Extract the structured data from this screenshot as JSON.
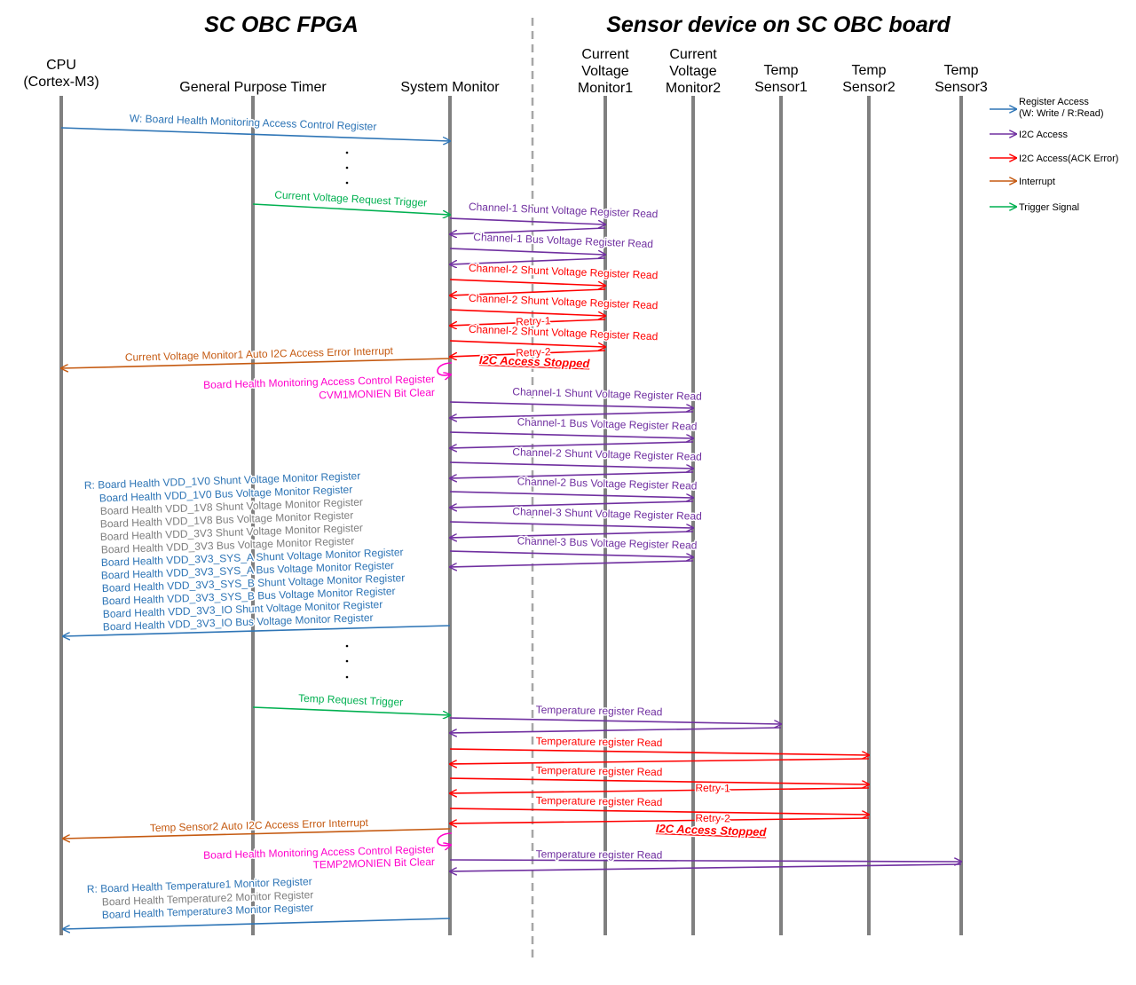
{
  "titles": {
    "left": "SC OBC FPGA",
    "right": "Sensor device on SC OBC board"
  },
  "colors": {
    "register": "#2e75b6",
    "i2c": "#7030a0",
    "error": "#ff0000",
    "interrupt": "#c55a11",
    "trigger": "#00b050",
    "clear": "#ff00cc",
    "gray_text": "#7f7f7f",
    "lifeline": "#808080"
  },
  "participants": [
    {
      "id": "cpu",
      "lines": [
        "CPU",
        "(Cortex-M3)"
      ]
    },
    {
      "id": "gpt",
      "lines": [
        "General Purpose Timer"
      ]
    },
    {
      "id": "sysmon",
      "lines": [
        "System Monitor"
      ]
    },
    {
      "id": "cvm1",
      "lines": [
        "Current",
        "Voltage",
        "Monitor1"
      ]
    },
    {
      "id": "cvm2",
      "lines": [
        "Current",
        "Voltage",
        "Monitor2"
      ]
    },
    {
      "id": "ts1",
      "lines": [
        "Temp",
        "Sensor1"
      ]
    },
    {
      "id": "ts2",
      "lines": [
        "Temp",
        "Sensor2"
      ]
    },
    {
      "id": "ts3",
      "lines": [
        "Temp",
        "Sensor3"
      ]
    }
  ],
  "legend": [
    {
      "type": "register",
      "lines": [
        "Register Access",
        "(W: Write / R:Read)"
      ]
    },
    {
      "type": "i2c",
      "lines": [
        "I2C Access"
      ]
    },
    {
      "type": "error",
      "lines": [
        "I2C Access(ACK Error)"
      ]
    },
    {
      "type": "interrupt",
      "lines": [
        "Interrupt"
      ]
    },
    {
      "type": "trigger",
      "lines": [
        "Trigger Signal"
      ]
    }
  ],
  "messages": {
    "m1": "W: Board Health Monitoring Access Control Register",
    "m2": "Current Voltage Request Trigger",
    "cvm1_read": [
      "Channel-1  Shunt  Voltage Register Read",
      "Channel-1  Bus  Voltage Register Read",
      "Channel-2  Shunt  Voltage Register Read",
      "Channel-2  Shunt  Voltage Register Read",
      "Channel-2  Shunt  Voltage Register Read"
    ],
    "retry1": "Retry-1",
    "retry2": "Retry-2",
    "interrupt1": "Current  Voltage  Monitor1  Auto  I2C  Access  Error  Interrupt",
    "stopped": "I2C Access Stopped",
    "clear1": [
      "Board Health Monitoring  Access Control Register",
      "CVM1MONIEN  Bit Clear"
    ],
    "cvm2_read": [
      "Channel-1  Shunt  Voltage Register Read",
      "Channel-1  Bus  Voltage Register Read",
      "Channel-2  Shunt  Voltage Register Read",
      "Channel-2  Bus  Voltage Register Read",
      "Channel-3  Shunt  Voltage Register Read",
      "Channel-3  Bus  Voltage Register Read"
    ],
    "read_regs": [
      {
        "text": "R:  Board Health VDD_1V0  Shunt  Voltage  Monitor  Register",
        "style": "register"
      },
      {
        "text": "Board Health VDD_1V0  Bus  Voltage  Monitor  Register",
        "style": "register"
      },
      {
        "text": "Board Health VDD_1V8  Shunt  Voltage  Monitor  Register",
        "style": "gray"
      },
      {
        "text": "Board Health VDD_1V8  Bus  Voltage  Monitor  Register",
        "style": "gray"
      },
      {
        "text": "Board Health VDD_3V3  Shunt  Voltage  Monitor  Register",
        "style": "gray"
      },
      {
        "text": "Board Health VDD_3V3  Bus  Voltage  Monitor  Register",
        "style": "gray"
      },
      {
        "text": "Board Health VDD_3V3_SYS_A  Shunt  Voltage Monitor  Register",
        "style": "register"
      },
      {
        "text": "Board Health VDD_3V3_SYS_A  Bus  Voltage Monitor  Register",
        "style": "register"
      },
      {
        "text": "Board Health VDD_3V3_SYS_B  Shunt  Voltage Monitor  Register",
        "style": "register"
      },
      {
        "text": "Board Health VDD_3V3_SYS_B  Bus  Voltage Monitor  Register",
        "style": "register"
      },
      {
        "text": "Board Health VDD_3V3_IO  Shunt  Voltage  Monitor  Register",
        "style": "register"
      },
      {
        "text": "Board Health VDD_3V3_IO  Bus  Voltage  Monitor  Register",
        "style": "register"
      }
    ],
    "temp_trigger": "Temp  Request  Trigger",
    "temp_read": "Temperature  register  Read",
    "interrupt2": "Temp  Sensor2  Auto  I2C  Access  Error  Interrupt",
    "clear2": [
      "Board Health Monitoring  Access  Control Register",
      "TEMP2MONIEN  Bit  Clear"
    ],
    "read_temp": [
      {
        "text": "R:  Board Health Temperature1  Monitor  Register",
        "style": "register"
      },
      {
        "text": "Board Health Temperature2  Monitor  Register",
        "style": "gray"
      },
      {
        "text": "Board Health Temperature3  Monitor  Register",
        "style": "register"
      }
    ]
  }
}
